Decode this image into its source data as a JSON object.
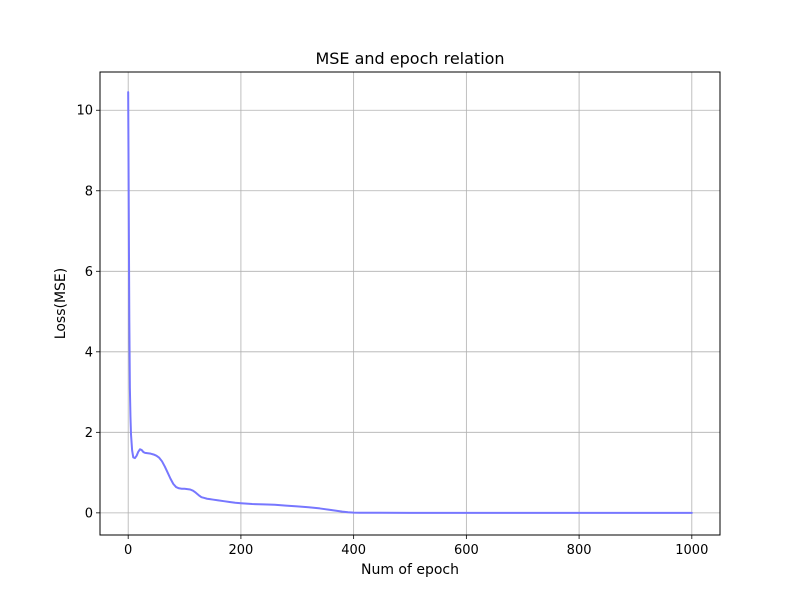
{
  "chart_data": {
    "type": "line",
    "title": "MSE and epoch relation",
    "xlabel": "Num of epoch",
    "ylabel": "Loss(MSE)",
    "xlim": [
      -50,
      1050
    ],
    "ylim": [
      -0.55,
      10.95
    ],
    "xticks": [
      0,
      200,
      400,
      600,
      800,
      1000
    ],
    "xtick_labels": [
      "0",
      "200",
      "400",
      "600",
      "800",
      "1000"
    ],
    "yticks": [
      0,
      2,
      4,
      6,
      8,
      10
    ],
    "ytick_labels": [
      "0",
      "2",
      "4",
      "6",
      "8",
      "10"
    ],
    "grid": true,
    "legend": false,
    "series": [
      {
        "color": "#7777ff",
        "x": [
          0,
          1,
          2,
          3,
          4,
          5,
          7,
          9,
          12,
          15,
          18,
          21,
          24,
          27,
          30,
          35,
          40,
          45,
          50,
          55,
          60,
          65,
          70,
          75,
          80,
          85,
          90,
          95,
          100,
          105,
          110,
          115,
          120,
          125,
          130,
          135,
          140,
          145,
          150,
          160,
          170,
          180,
          190,
          200,
          210,
          220,
          240,
          260,
          280,
          300,
          320,
          340,
          360,
          380,
          390,
          400,
          410,
          420,
          500,
          600,
          700,
          800,
          900,
          1000
        ],
        "y": [
          10.45,
          7.6,
          4.8,
          3.1,
          2.4,
          1.95,
          1.55,
          1.38,
          1.36,
          1.42,
          1.52,
          1.58,
          1.56,
          1.51,
          1.49,
          1.48,
          1.47,
          1.45,
          1.42,
          1.37,
          1.28,
          1.15,
          1.0,
          0.85,
          0.72,
          0.64,
          0.61,
          0.6,
          0.6,
          0.59,
          0.58,
          0.55,
          0.5,
          0.44,
          0.39,
          0.37,
          0.35,
          0.34,
          0.33,
          0.31,
          0.29,
          0.27,
          0.25,
          0.24,
          0.23,
          0.22,
          0.21,
          0.2,
          0.18,
          0.16,
          0.14,
          0.11,
          0.07,
          0.03,
          0.015,
          0.006,
          0.003,
          0.002,
          0.001,
          0.001,
          0.0005,
          0.0005,
          0.0004,
          0.0004
        ]
      }
    ]
  }
}
